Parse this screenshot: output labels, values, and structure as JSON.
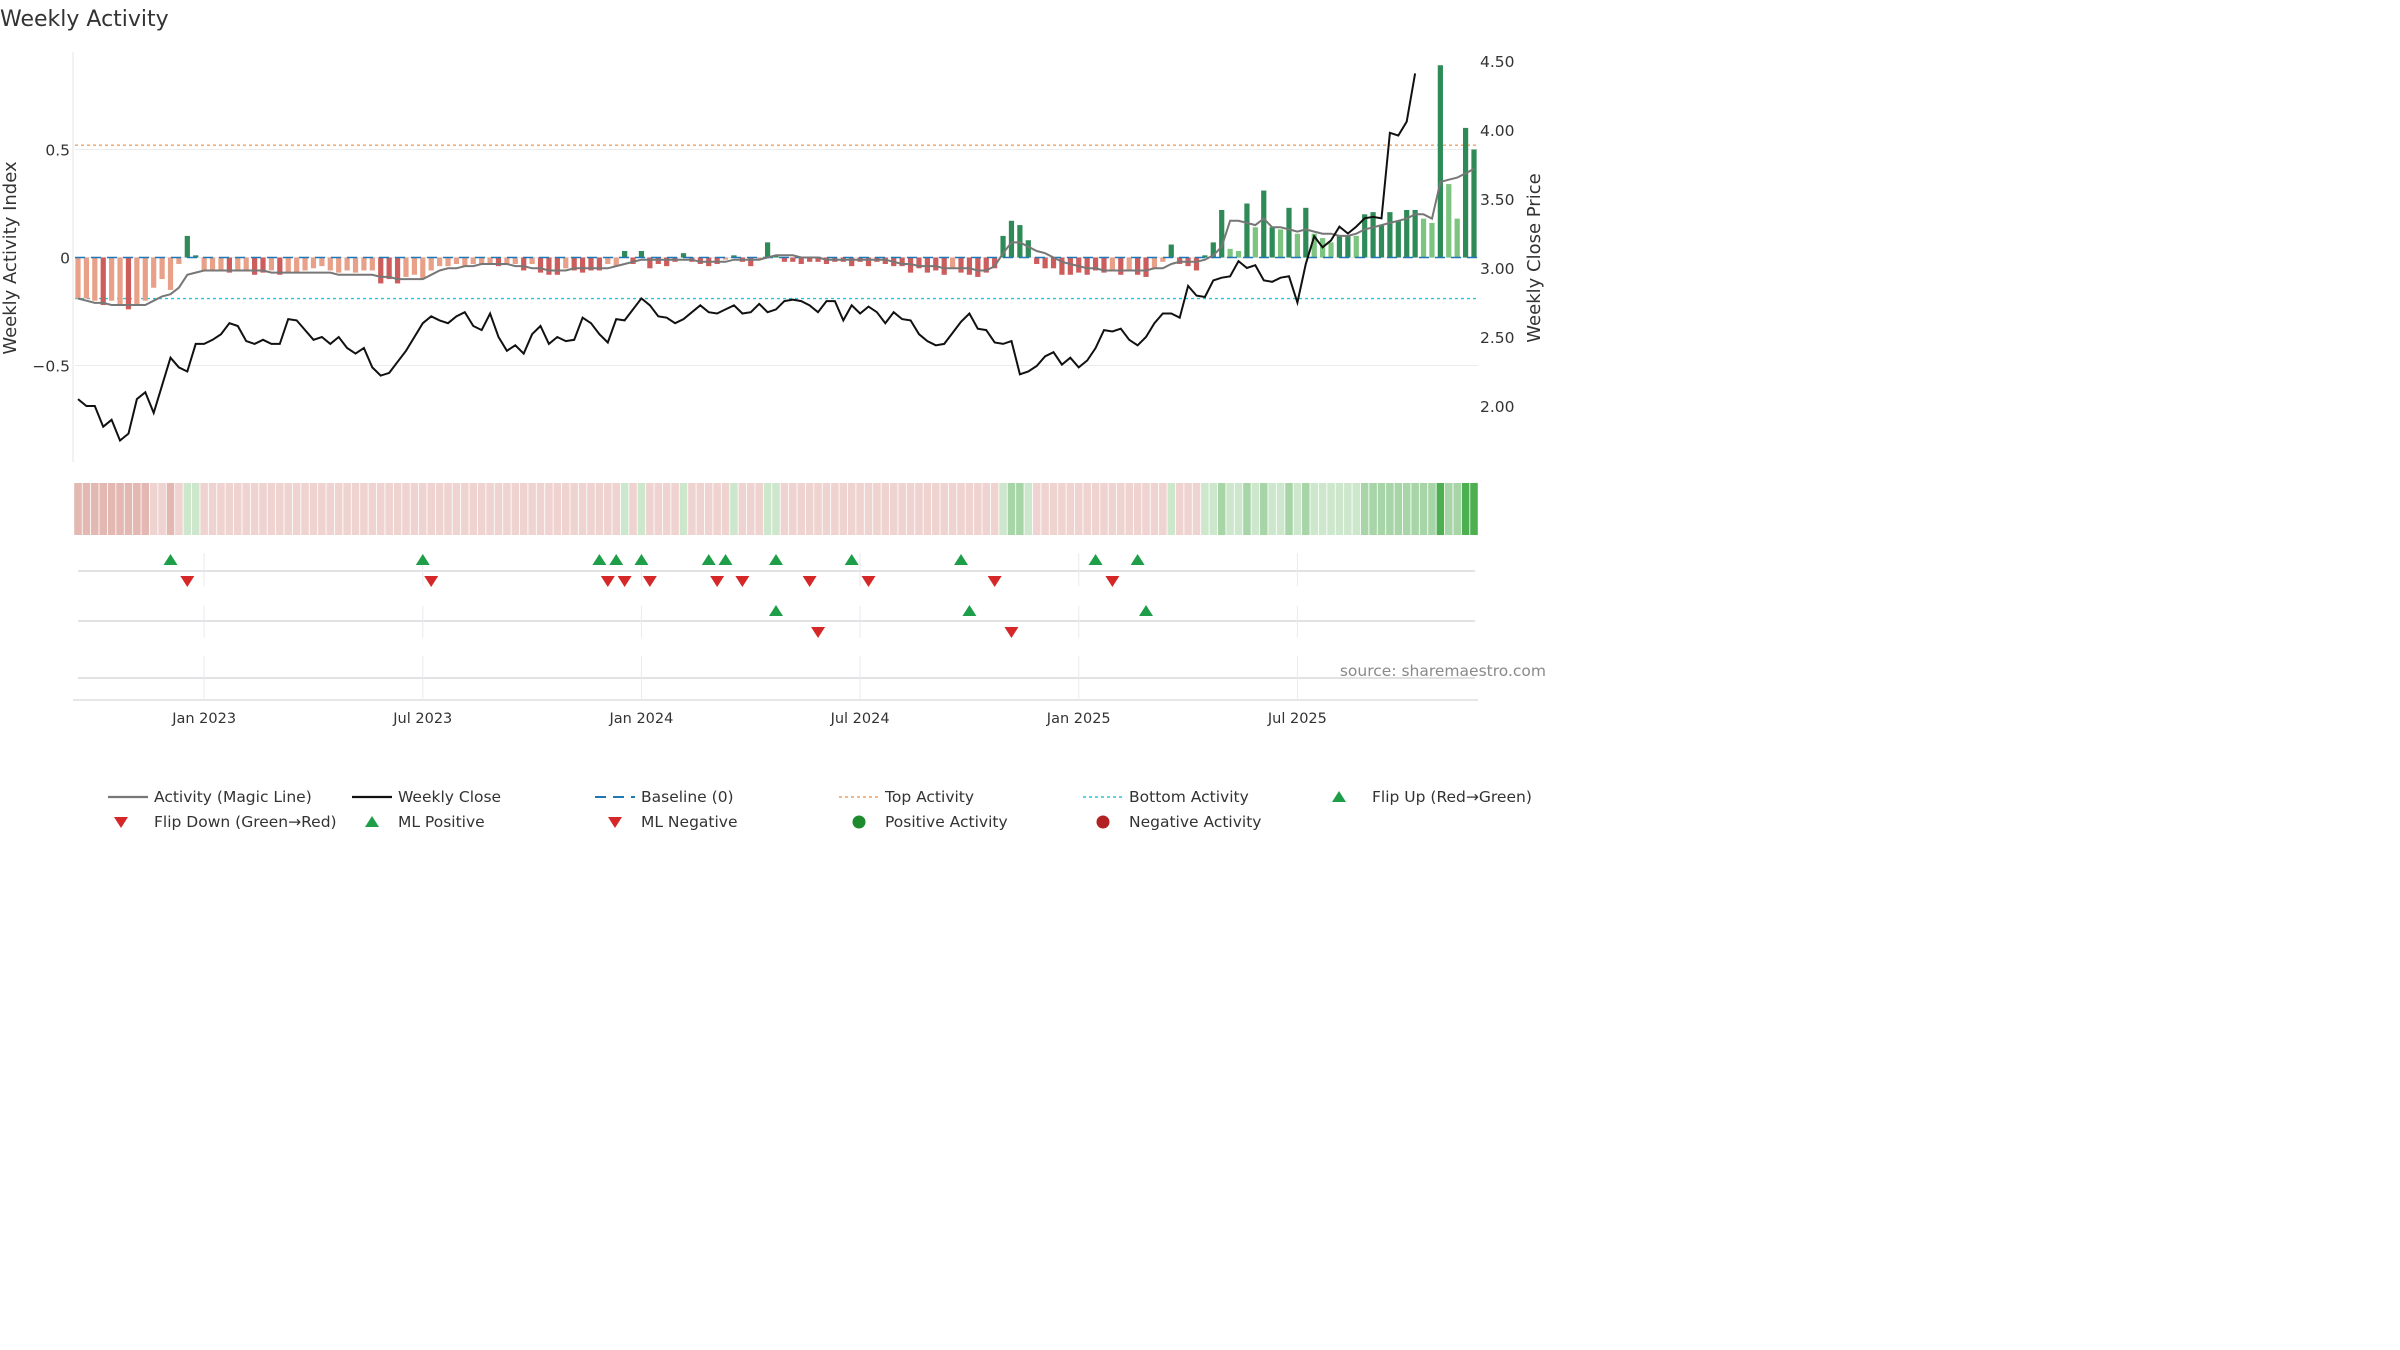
{
  "chart_data": {
    "type": "bar+line",
    "title": "Weekly Activity",
    "ylabel_left": "Weekly Activity Index",
    "ylabel_right": "Weekly Close Price",
    "left_ticks": [
      "0.5",
      "0",
      "−0.5"
    ],
    "left_tick_values": [
      0.5,
      0,
      -0.5
    ],
    "right_ticks": [
      "2.00",
      "2.50",
      "3.00",
      "3.50",
      "4.00",
      "4.50"
    ],
    "right_tick_values": [
      2.0,
      2.5,
      3.0,
      3.5,
      4.0,
      4.5
    ],
    "ylim_left": [
      -0.95,
      0.95
    ],
    "ylim_right": [
      1.6,
      4.6
    ],
    "x_ticks": [
      "Jan 2023",
      "Jul 2023",
      "Jan 2024",
      "Jul 2024",
      "Jan 2025",
      "Jul 2025"
    ],
    "x_tick_weeks": [
      15,
      41,
      67,
      93,
      119,
      145
    ],
    "top_activity": 0.52,
    "bottom_activity": -0.19,
    "baseline": 0,
    "source": "source: sharemaestro.com",
    "activity": [
      -0.19,
      -0.19,
      -0.2,
      -0.22,
      -0.2,
      -0.22,
      -0.24,
      -0.22,
      -0.2,
      -0.14,
      -0.1,
      -0.15,
      -0.03,
      0.1,
      0.01,
      -0.06,
      -0.06,
      -0.06,
      -0.07,
      -0.06,
      -0.06,
      -0.08,
      -0.07,
      -0.06,
      -0.08,
      -0.07,
      -0.07,
      -0.06,
      -0.05,
      -0.04,
      -0.06,
      -0.07,
      -0.06,
      -0.07,
      -0.06,
      -0.06,
      -0.12,
      -0.1,
      -0.12,
      -0.09,
      -0.08,
      -0.1,
      -0.06,
      -0.04,
      -0.04,
      -0.03,
      -0.04,
      -0.03,
      -0.03,
      -0.03,
      -0.04,
      -0.03,
      -0.03,
      -0.06,
      -0.03,
      -0.07,
      -0.08,
      -0.08,
      -0.05,
      -0.06,
      -0.07,
      -0.06,
      -0.06,
      -0.03,
      -0.04,
      0.03,
      -0.03,
      0.03,
      -0.05,
      -0.03,
      -0.04,
      -0.02,
      0.02,
      -0.02,
      -0.03,
      -0.04,
      -0.03,
      -0.01,
      0.01,
      -0.02,
      -0.04,
      -0.01,
      0.07,
      0.01,
      -0.02,
      -0.02,
      -0.03,
      -0.02,
      -0.02,
      -0.03,
      -0.02,
      -0.02,
      -0.04,
      -0.02,
      -0.04,
      -0.02,
      -0.03,
      -0.04,
      -0.04,
      -0.07,
      -0.05,
      -0.07,
      -0.06,
      -0.08,
      -0.05,
      -0.07,
      -0.08,
      -0.09,
      -0.07,
      -0.05,
      0.1,
      0.17,
      0.15,
      0.08,
      -0.03,
      -0.05,
      -0.05,
      -0.08,
      -0.08,
      -0.07,
      -0.08,
      -0.06,
      -0.07,
      -0.06,
      -0.08,
      -0.06,
      -0.08,
      -0.09,
      -0.05,
      -0.02,
      0.06,
      -0.03,
      -0.04,
      -0.06,
      0.01,
      0.07,
      0.22,
      0.04,
      0.03,
      0.25,
      0.14,
      0.31,
      0.14,
      0.13,
      0.23,
      0.11,
      0.23,
      0.11,
      0.09,
      0.07,
      0.1,
      0.1,
      0.1,
      0.2,
      0.21,
      0.15,
      0.21,
      0.17,
      0.22,
      0.22,
      0.18,
      0.16,
      0.89,
      0.34,
      0.18,
      0.6,
      0.5
    ],
    "activity_weeks": "index 0 = first week (approx Sep 2022), one bar per week",
    "magic_line": [
      -0.19,
      -0.2,
      -0.21,
      -0.21,
      -0.22,
      -0.22,
      -0.22,
      -0.22,
      -0.22,
      -0.2,
      -0.18,
      -0.17,
      -0.14,
      -0.08,
      -0.07,
      -0.06,
      -0.06,
      -0.06,
      -0.06,
      -0.06,
      -0.06,
      -0.06,
      -0.06,
      -0.07,
      -0.07,
      -0.07,
      -0.07,
      -0.07,
      -0.07,
      -0.07,
      -0.07,
      -0.08,
      -0.08,
      -0.08,
      -0.08,
      -0.08,
      -0.09,
      -0.09,
      -0.1,
      -0.1,
      -0.1,
      -0.1,
      -0.08,
      -0.06,
      -0.05,
      -0.05,
      -0.04,
      -0.04,
      -0.03,
      -0.03,
      -0.03,
      -0.03,
      -0.04,
      -0.04,
      -0.05,
      -0.05,
      -0.06,
      -0.06,
      -0.06,
      -0.05,
      -0.05,
      -0.05,
      -0.05,
      -0.05,
      -0.04,
      -0.03,
      -0.02,
      -0.01,
      -0.01,
      -0.01,
      -0.01,
      -0.01,
      -0.01,
      -0.01,
      -0.02,
      -0.02,
      -0.02,
      -0.02,
      -0.01,
      -0.01,
      -0.01,
      -0.01,
      0.0,
      0.01,
      0.01,
      0.01,
      0.0,
      0.0,
      0.0,
      -0.01,
      -0.01,
      -0.01,
      -0.01,
      -0.01,
      -0.01,
      -0.01,
      -0.01,
      -0.02,
      -0.03,
      -0.03,
      -0.04,
      -0.04,
      -0.04,
      -0.05,
      -0.05,
      -0.05,
      -0.05,
      -0.06,
      -0.06,
      -0.04,
      0.02,
      0.07,
      0.07,
      0.05,
      0.03,
      0.02,
      0.0,
      -0.02,
      -0.03,
      -0.04,
      -0.05,
      -0.05,
      -0.06,
      -0.06,
      -0.06,
      -0.06,
      -0.06,
      -0.06,
      -0.05,
      -0.05,
      -0.03,
      -0.02,
      -0.02,
      -0.02,
      -0.01,
      0.01,
      0.05,
      0.17,
      0.17,
      0.16,
      0.15,
      0.18,
      0.14,
      0.14,
      0.13,
      0.12,
      0.13,
      0.12,
      0.11,
      0.11,
      0.1,
      0.1,
      0.11,
      0.13,
      0.14,
      0.15,
      0.16,
      0.17,
      0.18,
      0.2,
      0.2,
      0.18,
      0.35,
      0.36,
      0.37,
      0.39,
      0.41
    ],
    "weekly_close": [
      2.05,
      2.0,
      2.0,
      1.85,
      1.9,
      1.75,
      1.8,
      2.05,
      2.1,
      1.95,
      2.15,
      2.35,
      2.28,
      2.25,
      2.45,
      2.45,
      2.48,
      2.52,
      2.6,
      2.58,
      2.47,
      2.45,
      2.48,
      2.45,
      2.45,
      2.63,
      2.62,
      2.55,
      2.48,
      2.5,
      2.45,
      2.5,
      2.42,
      2.38,
      2.42,
      2.28,
      2.22,
      2.24,
      2.32,
      2.4,
      2.5,
      2.6,
      2.65,
      2.62,
      2.6,
      2.65,
      2.68,
      2.58,
      2.55,
      2.67,
      2.5,
      2.4,
      2.44,
      2.38,
      2.52,
      2.58,
      2.45,
      2.5,
      2.47,
      2.48,
      2.64,
      2.6,
      2.52,
      2.46,
      2.63,
      2.62,
      2.7,
      2.78,
      2.73,
      2.65,
      2.64,
      2.6,
      2.63,
      2.68,
      2.73,
      2.68,
      2.67,
      2.7,
      2.73,
      2.67,
      2.68,
      2.74,
      2.68,
      2.7,
      2.76,
      2.77,
      2.76,
      2.73,
      2.68,
      2.76,
      2.76,
      2.62,
      2.73,
      2.67,
      2.72,
      2.68,
      2.6,
      2.68,
      2.63,
      2.62,
      2.52,
      2.47,
      2.44,
      2.45,
      2.53,
      2.61,
      2.67,
      2.56,
      2.55,
      2.46,
      2.45,
      2.47,
      2.23,
      2.25,
      2.29,
      2.36,
      2.39,
      2.3,
      2.35,
      2.28,
      2.33,
      2.42,
      2.55,
      2.54,
      2.56,
      2.48,
      2.44,
      2.5,
      2.6,
      2.67,
      2.67,
      2.64,
      2.87,
      2.8,
      2.79,
      2.91,
      2.93,
      2.94,
      3.05,
      3.0,
      3.02,
      2.91,
      2.9,
      2.93,
      2.94,
      2.75,
      3.03,
      3.23,
      3.15,
      3.2,
      3.3,
      3.25,
      3.3,
      3.36,
      3.37,
      3.36,
      3.98,
      3.96,
      4.06,
      4.41
    ],
    "band_colors": "per-week strip colored by sign of activity (red = negative, green = positive)",
    "flip_up_weeks": [
      11,
      41,
      62,
      64,
      67,
      75,
      77,
      83,
      92,
      105,
      121,
      126
    ],
    "flip_down_weeks": [
      13,
      42,
      63,
      65,
      68,
      76,
      79,
      87,
      94,
      109,
      123
    ],
    "ml_positive_weeks": [
      83,
      106,
      127
    ],
    "ml_negative_weeks": [
      88,
      111
    ],
    "legend": [
      {
        "name": "Activity (Magic Line)",
        "marker": "line",
        "color": "#777777"
      },
      {
        "name": "Weekly Close",
        "marker": "line",
        "color": "#111111"
      },
      {
        "name": "Baseline (0)",
        "marker": "dash",
        "color": "#1f77b4"
      },
      {
        "name": "Top Activity",
        "marker": "dot-line",
        "color": "#f0a060"
      },
      {
        "name": "Bottom Activity",
        "marker": "dot-line",
        "color": "#20c8d8"
      },
      {
        "name": "Flip Up (Red→Green)",
        "marker": "up",
        "color": "#1f9e4a"
      },
      {
        "name": "Flip Down (Green→Red)",
        "marker": "down",
        "color": "#d62728"
      },
      {
        "name": "ML Positive",
        "marker": "up",
        "color": "#1f9e4a"
      },
      {
        "name": "ML Negative",
        "marker": "down",
        "color": "#d62728"
      },
      {
        "name": "Positive Activity",
        "marker": "circle",
        "color": "#1e8a2e"
      },
      {
        "name": "Negative Activity",
        "marker": "circle",
        "color": "#b22222"
      }
    ]
  }
}
